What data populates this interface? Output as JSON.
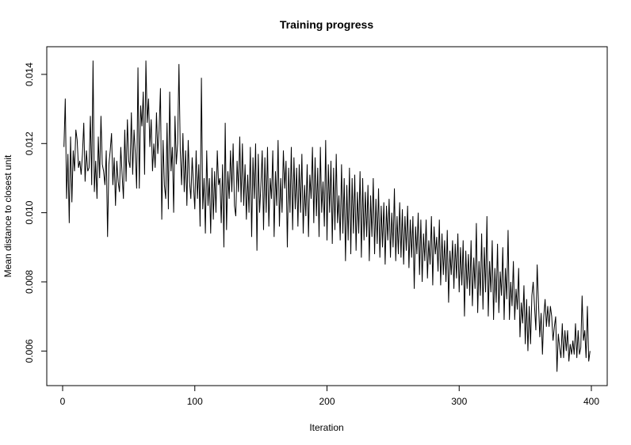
{
  "chart_data": {
    "type": "line",
    "title": "Training progress",
    "xlabel": "Iteration",
    "ylabel": "Mean distance to closest unit",
    "xlim": [
      -12,
      412
    ],
    "ylim": [
      0.005,
      0.0148
    ],
    "x_ticks": [
      0,
      100,
      200,
      300,
      400
    ],
    "x_tick_labels": [
      "0",
      "100",
      "200",
      "300",
      "400"
    ],
    "y_ticks": [
      0.006,
      0.008,
      0.01,
      0.012,
      0.014
    ],
    "y_tick_labels": [
      "0.006",
      "0.008",
      "0.010",
      "0.012",
      "0.014"
    ],
    "grid": false,
    "legend": "none",
    "line_color": "#000000",
    "series": [
      {
        "x_start": 1,
        "x_step": 1,
        "values": [
          0.0119,
          0.0133,
          0.0104,
          0.0117,
          0.0097,
          0.0122,
          0.0103,
          0.0118,
          0.0112,
          0.0124,
          0.0121,
          0.0113,
          0.0115,
          0.0111,
          0.0117,
          0.0126,
          0.0109,
          0.0118,
          0.0112,
          0.0113,
          0.0128,
          0.0108,
          0.0144,
          0.0106,
          0.0115,
          0.0104,
          0.0122,
          0.011,
          0.0128,
          0.0114,
          0.0112,
          0.0108,
          0.0118,
          0.0093,
          0.0114,
          0.0118,
          0.0123,
          0.0108,
          0.0116,
          0.0102,
          0.0115,
          0.0109,
          0.0106,
          0.0119,
          0.0111,
          0.0104,
          0.0124,
          0.0109,
          0.0127,
          0.0115,
          0.0113,
          0.0129,
          0.0111,
          0.0124,
          0.0117,
          0.0107,
          0.0142,
          0.0107,
          0.0131,
          0.0125,
          0.0135,
          0.0111,
          0.0144,
          0.0126,
          0.0133,
          0.0119,
          0.0127,
          0.0112,
          0.012,
          0.0113,
          0.0129,
          0.0117,
          0.0124,
          0.0136,
          0.0098,
          0.0121,
          0.0108,
          0.0104,
          0.0126,
          0.0101,
          0.0135,
          0.0112,
          0.0119,
          0.01,
          0.0128,
          0.0114,
          0.012,
          0.0143,
          0.0118,
          0.0108,
          0.0123,
          0.0106,
          0.0118,
          0.0102,
          0.0121,
          0.0109,
          0.0104,
          0.0116,
          0.0108,
          0.0101,
          0.0118,
          0.0104,
          0.0114,
          0.0096,
          0.0139,
          0.0101,
          0.011,
          0.0094,
          0.0118,
          0.0102,
          0.011,
          0.0094,
          0.0113,
          0.0098,
          0.0112,
          0.01,
          0.0118,
          0.0108,
          0.011,
          0.0097,
          0.0114,
          0.009,
          0.0126,
          0.0095,
          0.0112,
          0.0104,
          0.0118,
          0.0106,
          0.012,
          0.0102,
          0.0099,
          0.0115,
          0.0106,
          0.0122,
          0.0103,
          0.012,
          0.0102,
          0.0114,
          0.0098,
          0.0111,
          0.01,
          0.0119,
          0.0093,
          0.0116,
          0.0104,
          0.012,
          0.0089,
          0.0117,
          0.01,
          0.0108,
          0.0118,
          0.0095,
          0.0116,
          0.01,
          0.0119,
          0.0096,
          0.011,
          0.0104,
          0.0118,
          0.0093,
          0.0112,
          0.0102,
          0.0121,
          0.0096,
          0.011,
          0.01,
          0.0118,
          0.0107,
          0.0115,
          0.009,
          0.0113,
          0.01,
          0.0119,
          0.0095,
          0.0116,
          0.0101,
          0.0113,
          0.0096,
          0.0114,
          0.01,
          0.0117,
          0.0094,
          0.0108,
          0.0099,
          0.0114,
          0.0093,
          0.0111,
          0.0104,
          0.0119,
          0.0097,
          0.0116,
          0.0099,
          0.0113,
          0.0093,
          0.0119,
          0.01,
          0.0109,
          0.0096,
          0.0121,
          0.0092,
          0.0114,
          0.01,
          0.0115,
          0.0091,
          0.0113,
          0.0095,
          0.0117,
          0.0097,
          0.0105,
          0.0092,
          0.0114,
          0.0094,
          0.011,
          0.0086,
          0.0108,
          0.0092,
          0.0113,
          0.0088,
          0.011,
          0.0094,
          0.0111,
          0.0089,
          0.0106,
          0.0094,
          0.0112,
          0.0087,
          0.011,
          0.0092,
          0.0106,
          0.0093,
          0.0108,
          0.0086,
          0.0105,
          0.0093,
          0.011,
          0.0088,
          0.0104,
          0.0091,
          0.0107,
          0.0087,
          0.0102,
          0.009,
          0.0103,
          0.0085,
          0.0102,
          0.0092,
          0.0104,
          0.0087,
          0.01,
          0.009,
          0.0107,
          0.0086,
          0.0099,
          0.0088,
          0.0103,
          0.0087,
          0.0101,
          0.0085,
          0.0099,
          0.0089,
          0.0102,
          0.0084,
          0.0098,
          0.0087,
          0.0099,
          0.0078,
          0.0096,
          0.0088,
          0.01,
          0.0082,
          0.0098,
          0.008,
          0.0094,
          0.0086,
          0.0098,
          0.0081,
          0.0092,
          0.0085,
          0.0099,
          0.0079,
          0.0096,
          0.0088,
          0.0093,
          0.0083,
          0.0098,
          0.0079,
          0.0094,
          0.0082,
          0.0092,
          0.008,
          0.0095,
          0.0074,
          0.0089,
          0.0082,
          0.0092,
          0.0078,
          0.0091,
          0.0081,
          0.0094,
          0.0077,
          0.009,
          0.0079,
          0.0092,
          0.007,
          0.0089,
          0.0078,
          0.0088,
          0.0076,
          0.0092,
          0.0073,
          0.0087,
          0.0078,
          0.0097,
          0.0071,
          0.0086,
          0.0076,
          0.0094,
          0.0072,
          0.009,
          0.0077,
          0.0099,
          0.007,
          0.0086,
          0.0077,
          0.0092,
          0.0069,
          0.0084,
          0.0074,
          0.0091,
          0.0071,
          0.0083,
          0.0076,
          0.009,
          0.0069,
          0.0084,
          0.0075,
          0.0095,
          0.0069,
          0.008,
          0.0073,
          0.0086,
          0.0069,
          0.0078,
          0.0072,
          0.0084,
          0.0064,
          0.0074,
          0.0068,
          0.0079,
          0.0062,
          0.0075,
          0.006,
          0.0073,
          0.0062,
          0.0076,
          0.008,
          0.0073,
          0.0066,
          0.0085,
          0.0074,
          0.0064,
          0.0071,
          0.0059,
          0.007,
          0.0075,
          0.0067,
          0.0073,
          0.0067,
          0.0073,
          0.007,
          0.0063,
          0.0067,
          0.007,
          0.0054,
          0.0065,
          0.0061,
          0.0058,
          0.0068,
          0.0058,
          0.0066,
          0.006,
          0.0066,
          0.0057,
          0.0062,
          0.0059,
          0.0063,
          0.0059,
          0.0068,
          0.0058,
          0.0066,
          0.0059,
          0.0061,
          0.0076,
          0.0063,
          0.0066,
          0.0058,
          0.0073,
          0.0057,
          0.006
        ]
      }
    ]
  }
}
